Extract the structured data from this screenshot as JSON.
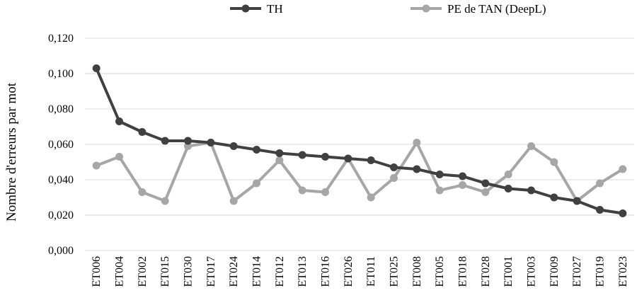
{
  "chart_data": {
    "type": "line",
    "title": "",
    "xlabel": "",
    "ylabel": "Nombre d'erreurs par mot",
    "ylim": [
      0,
      0.12
    ],
    "y_ticks": [
      "0,000",
      "0,020",
      "0,040",
      "0,060",
      "0,080",
      "0,100",
      "0,120"
    ],
    "grid": true,
    "legend_position": "top-center",
    "categories": [
      "ET006",
      "ET004",
      "ET002",
      "ET015",
      "ET030",
      "ET017",
      "ET024",
      "ET014",
      "ET012",
      "ET013",
      "ET016",
      "ET026",
      "ET011",
      "ET025",
      "ET008",
      "ET005",
      "ET018",
      "ET028",
      "ET001",
      "ET003",
      "ET009",
      "ET027",
      "ET019",
      "ET023"
    ],
    "series": [
      {
        "name": "TH",
        "color": "#404040",
        "values": [
          0.103,
          0.073,
          0.067,
          0.062,
          0.062,
          0.061,
          0.059,
          0.057,
          0.055,
          0.054,
          0.053,
          0.052,
          0.051,
          0.047,
          0.046,
          0.043,
          0.042,
          0.038,
          0.035,
          0.034,
          0.03,
          0.028,
          0.023,
          0.021
        ]
      },
      {
        "name": "PE de TAN (DeepL)",
        "color": "#a6a6a6",
        "values": [
          0.048,
          0.053,
          0.033,
          0.028,
          0.059,
          0.061,
          0.028,
          0.038,
          0.051,
          0.034,
          0.033,
          0.052,
          0.03,
          0.041,
          0.061,
          0.034,
          0.037,
          0.033,
          0.043,
          0.059,
          0.05,
          0.028,
          0.038,
          0.046
        ]
      }
    ]
  }
}
